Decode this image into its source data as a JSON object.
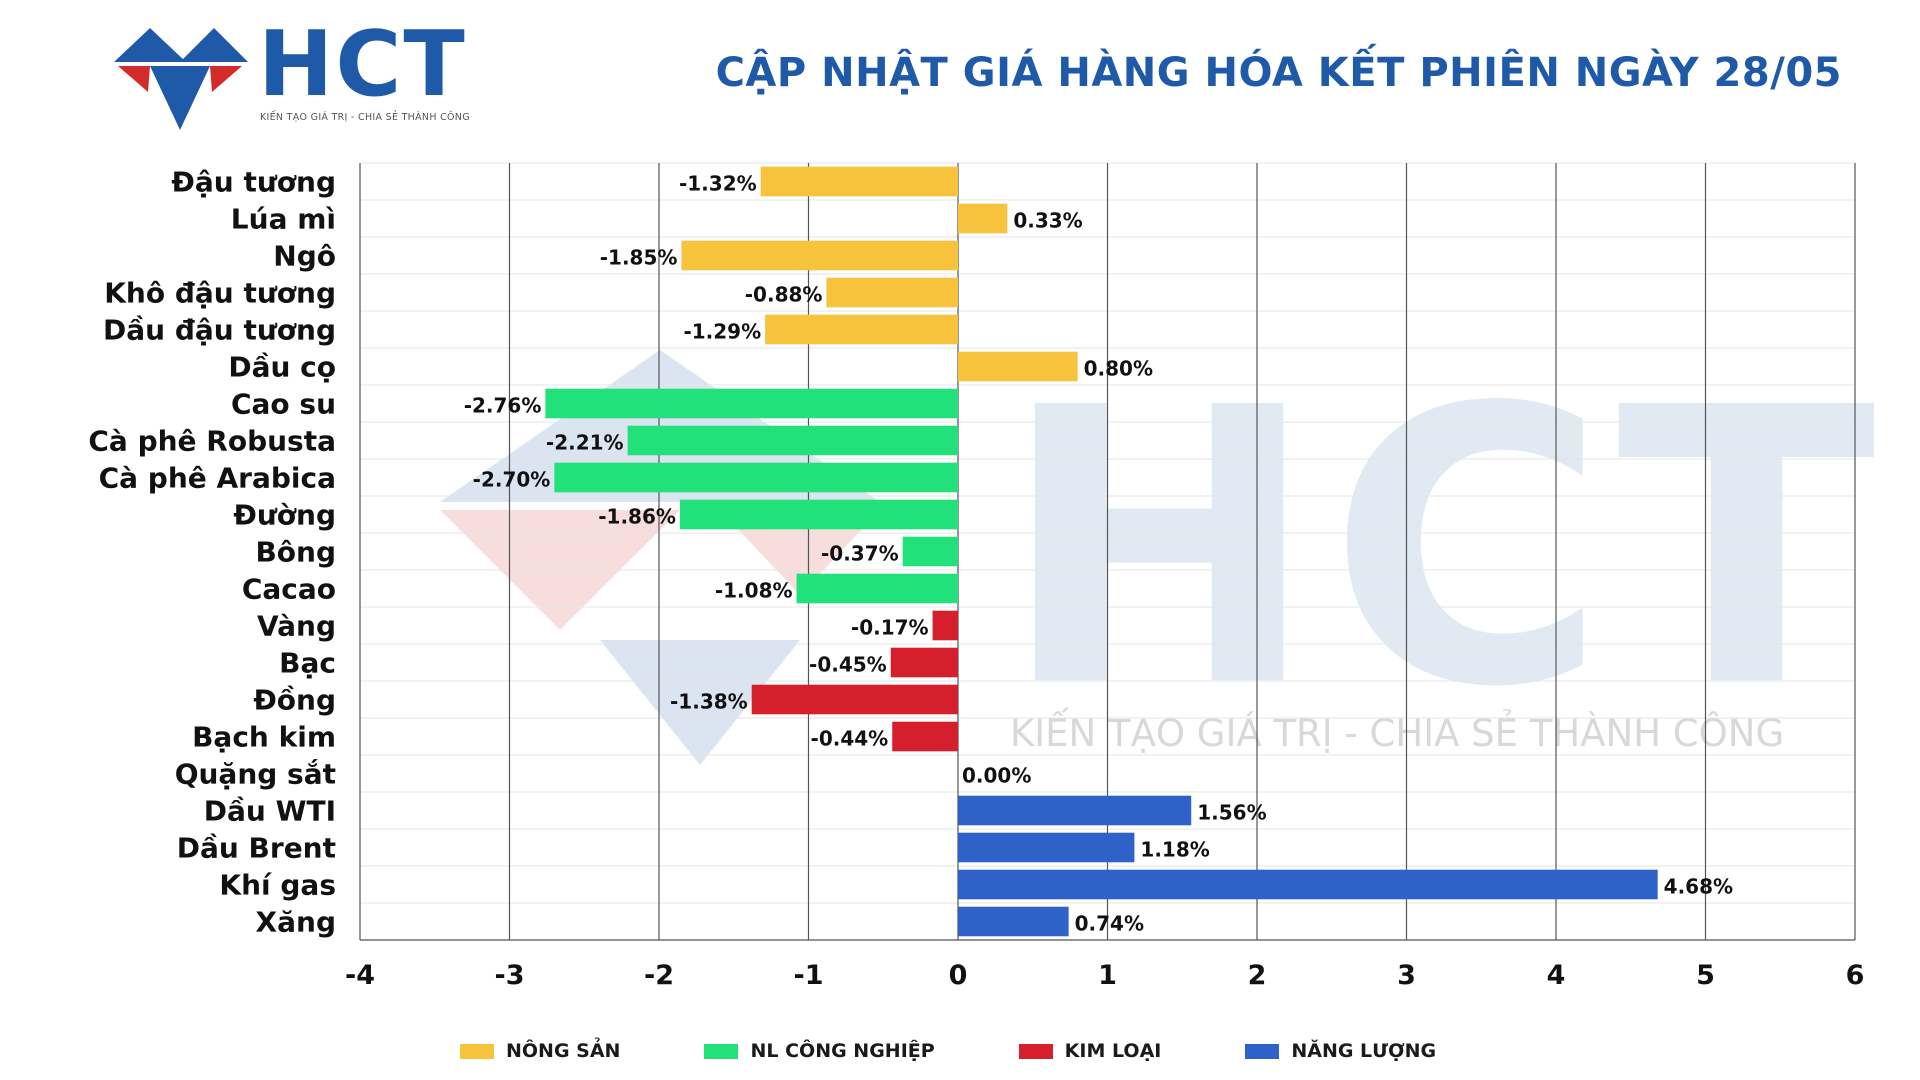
{
  "logo": {
    "text": "HCT",
    "tagline": "KIẾN TẠO GIÁ TRỊ - CHIA SẺ THÀNH CÔNG"
  },
  "watermark": {
    "text": "HCT",
    "tagline": "KIẾN TẠO GIÁ TRỊ - CHIA SẺ THÀNH CÔNG"
  },
  "colors": {
    "brand_blue": "#1f5aa8",
    "brand_red": "#d32a2a",
    "nong_san": "#f7c23c",
    "nl_cong_nghiep": "#22e07a",
    "kim_loai": "#d61f2c",
    "nang_luong": "#2e62c9"
  },
  "chart_data": {
    "type": "bar",
    "orientation": "horizontal",
    "title": "CẬP NHẬT GIÁ HÀNG HÓA KẾT PHIÊN NGÀY 28/05",
    "xlabel": "",
    "ylabel": "",
    "xlim": [
      -4,
      6
    ],
    "xticks": [
      "-4",
      "-3",
      "-2",
      "-1",
      "0",
      "1",
      "2",
      "3",
      "4",
      "5",
      "6"
    ],
    "grid": "vertical",
    "legend_position": "bottom",
    "categories": [
      "Đậu tương",
      "Lúa mì",
      "Ngô",
      "Khô đậu tương",
      "Dầu đậu tương",
      "Dầu cọ",
      "Cao su",
      "Cà phê Robusta",
      "Cà phê Arabica",
      "Đường",
      "Bông",
      "Cacao",
      "Vàng",
      "Bạc",
      "Đồng",
      "Bạch kim",
      "Quặng sắt",
      "Dầu WTI",
      "Dầu Brent",
      "Khí gas",
      "Xăng"
    ],
    "values": [
      -1.32,
      0.33,
      -1.85,
      -0.88,
      -1.29,
      0.8,
      -2.76,
      -2.21,
      -2.7,
      -1.86,
      -0.37,
      -1.08,
      -0.17,
      -0.45,
      -1.38,
      -0.44,
      0.0,
      1.56,
      1.18,
      4.68,
      0.74
    ],
    "labels": [
      "-1.32%",
      "0.33%",
      "-1.85%",
      "-0.88%",
      "-1.29%",
      "0.80%",
      "-2.76%",
      "-2.21%",
      "-2.70%",
      "-1.86%",
      "-0.37%",
      "-1.08%",
      "-0.17%",
      "-0.45%",
      "-1.38%",
      "-0.44%",
      "0.00%",
      "1.56%",
      "1.18%",
      "4.68%",
      "0.74%"
    ],
    "groups": [
      "nong_san",
      "nong_san",
      "nong_san",
      "nong_san",
      "nong_san",
      "nong_san",
      "nl_cong_nghiep",
      "nl_cong_nghiep",
      "nl_cong_nghiep",
      "nl_cong_nghiep",
      "nl_cong_nghiep",
      "nl_cong_nghiep",
      "kim_loai",
      "kim_loai",
      "kim_loai",
      "kim_loai",
      "kim_loai",
      "nang_luong",
      "nang_luong",
      "nang_luong",
      "nang_luong"
    ],
    "legend": [
      {
        "key": "nong_san",
        "label": "NÔNG SẢN"
      },
      {
        "key": "nl_cong_nghiep",
        "label": "NL CÔNG NGHIỆP"
      },
      {
        "key": "kim_loai",
        "label": "KIM LOẠI"
      },
      {
        "key": "nang_luong",
        "label": "NĂNG LƯỢNG"
      }
    ]
  }
}
